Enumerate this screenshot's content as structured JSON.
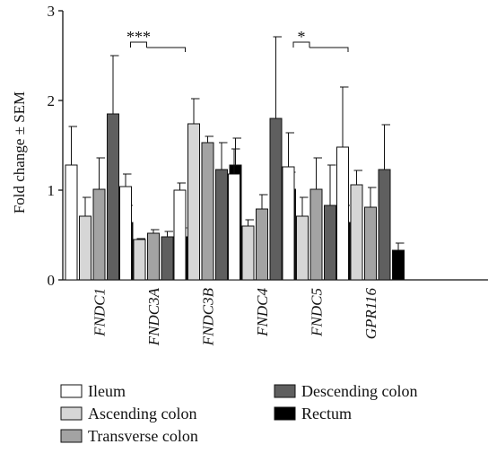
{
  "chart_data": {
    "type": "bar",
    "ylabel": "Fold change ± SEM",
    "ylim": [
      0,
      3
    ],
    "yticks": [
      "0",
      "1",
      "2",
      "3"
    ],
    "grid": false,
    "legend_position": "bottom",
    "categories": [
      "FNDC1",
      "FNDC3A",
      "FNDC3B",
      "FNDC4",
      "FNDC5",
      "GPR116"
    ],
    "series": [
      {
        "name": "Ileum",
        "color": "#ffffff",
        "values": [
          1.28,
          1.04,
          1.0,
          1.18,
          1.26,
          1.48
        ],
        "errors": [
          0.43,
          0.14,
          0.08,
          0.28,
          0.38,
          0.67
        ]
      },
      {
        "name": "Ascending colon",
        "color": "#d6d6d6",
        "values": [
          0.71,
          0.45,
          1.74,
          0.6,
          0.71,
          1.06
        ],
        "errors": [
          0.21,
          0.01,
          0.28,
          0.07,
          0.21,
          0.16
        ]
      },
      {
        "name": "Transverse colon",
        "color": "#a3a3a3",
        "values": [
          1.01,
          0.52,
          1.53,
          0.79,
          1.01,
          0.81
        ],
        "errors": [
          0.35,
          0.04,
          0.07,
          0.16,
          0.35,
          0.22
        ]
      },
      {
        "name": "Descending colon",
        "color": "#5f5f5f",
        "values": [
          1.85,
          0.48,
          1.23,
          1.8,
          0.83,
          1.23
        ],
        "errors": [
          0.65,
          0.06,
          0.3,
          0.91,
          0.45,
          0.5
        ]
      },
      {
        "name": "Rectum",
        "color": "#000000",
        "values": [
          0.64,
          0.48,
          1.28,
          1.01,
          0.64,
          0.33
        ],
        "errors": [
          0.19,
          0.1,
          0.3,
          0.19,
          0.19,
          0.08
        ]
      }
    ],
    "annotations": [
      {
        "text": "***",
        "category": "FNDC3A"
      },
      {
        "text": "*",
        "category": "FNDC5"
      }
    ]
  }
}
